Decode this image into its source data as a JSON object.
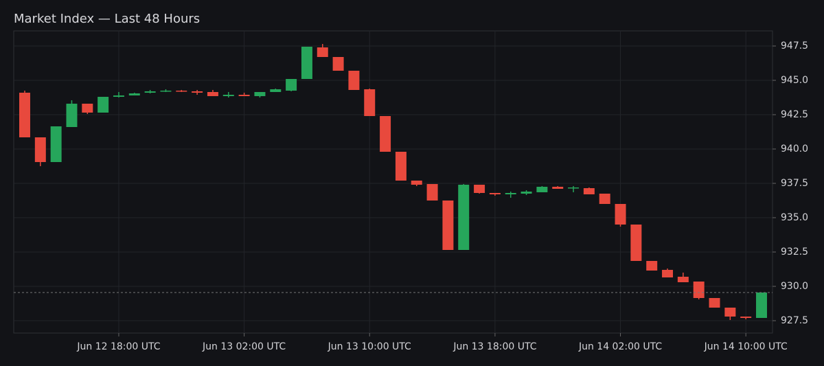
{
  "chart_data": {
    "type": "candlestick",
    "title": "Market Index — Last 48 Hours",
    "x": [
      "Jun 12 12:00",
      "Jun 12 13:00",
      "Jun 12 14:00",
      "Jun 12 15:00",
      "Jun 12 16:00",
      "Jun 12 17:00",
      "Jun 12 18:00",
      "Jun 12 19:00",
      "Jun 12 20:00",
      "Jun 12 21:00",
      "Jun 12 22:00",
      "Jun 12 23:00",
      "Jun 13 00:00",
      "Jun 13 01:00",
      "Jun 13 02:00",
      "Jun 13 03:00",
      "Jun 13 04:00",
      "Jun 13 05:00",
      "Jun 13 06:00",
      "Jun 13 07:00",
      "Jun 13 08:00",
      "Jun 13 09:00",
      "Jun 13 10:00",
      "Jun 13 11:00",
      "Jun 13 12:00",
      "Jun 13 13:00",
      "Jun 13 14:00",
      "Jun 13 15:00",
      "Jun 13 16:00",
      "Jun 13 17:00",
      "Jun 13 18:00",
      "Jun 13 19:00",
      "Jun 13 20:00",
      "Jun 13 21:00",
      "Jun 13 22:00",
      "Jun 13 23:00",
      "Jun 14 00:00",
      "Jun 14 01:00",
      "Jun 14 02:00",
      "Jun 14 03:00",
      "Jun 14 04:00",
      "Jun 14 05:00",
      "Jun 14 06:00",
      "Jun 14 07:00",
      "Jun 14 08:00",
      "Jun 14 09:00",
      "Jun 14 10:00",
      "Jun 14 11:00"
    ],
    "open": [
      944.1,
      940.85,
      939.05,
      941.6,
      943.3,
      942.65,
      943.8,
      943.9,
      944.1,
      944.2,
      944.25,
      944.2,
      944.15,
      943.85,
      943.95,
      943.85,
      944.15,
      944.25,
      945.1,
      947.4,
      946.7,
      945.7,
      944.35,
      942.4,
      939.8,
      937.7,
      937.45,
      936.25,
      932.65,
      937.4,
      936.8,
      936.7,
      936.75,
      936.85,
      937.25,
      937.15,
      937.15,
      936.75,
      936.0,
      934.5,
      931.85,
      931.2,
      930.7,
      930.35,
      929.15,
      928.45,
      927.8,
      927.7
    ],
    "high": [
      944.25,
      940.85,
      941.65,
      943.55,
      943.3,
      943.8,
      944.15,
      944.1,
      944.3,
      944.35,
      944.3,
      944.3,
      944.3,
      944.15,
      944.1,
      944.15,
      944.4,
      945.1,
      947.45,
      947.65,
      946.7,
      945.7,
      944.4,
      942.4,
      939.8,
      937.7,
      937.45,
      936.25,
      937.45,
      937.4,
      936.8,
      936.9,
      937.0,
      937.3,
      937.3,
      937.3,
      937.2,
      936.75,
      936.0,
      934.5,
      931.85,
      931.3,
      931.0,
      930.35,
      929.15,
      928.45,
      927.8,
      929.55
    ],
    "low": [
      940.85,
      938.75,
      939.05,
      941.6,
      942.55,
      942.65,
      943.75,
      943.9,
      944.05,
      944.15,
      944.15,
      943.95,
      943.85,
      943.75,
      943.85,
      943.75,
      944.15,
      944.2,
      945.1,
      946.7,
      945.7,
      944.3,
      942.4,
      939.8,
      937.7,
      937.3,
      936.25,
      932.65,
      932.65,
      936.75,
      936.6,
      936.45,
      936.65,
      936.85,
      937.1,
      936.85,
      936.7,
      936.0,
      934.35,
      931.85,
      931.15,
      930.65,
      930.3,
      929.05,
      928.45,
      927.55,
      927.6,
      927.7
    ],
    "close": [
      940.85,
      939.05,
      941.65,
      943.3,
      942.65,
      943.8,
      943.9,
      944.05,
      944.2,
      944.25,
      944.2,
      944.1,
      943.85,
      943.95,
      943.85,
      944.15,
      944.35,
      945.1,
      947.45,
      946.7,
      945.7,
      944.3,
      942.4,
      939.8,
      937.7,
      937.4,
      936.25,
      932.65,
      937.4,
      936.8,
      936.7,
      936.8,
      936.9,
      937.25,
      937.1,
      937.2,
      936.7,
      936.0,
      934.5,
      931.85,
      931.15,
      930.65,
      930.3,
      929.15,
      928.45,
      927.8,
      927.7,
      929.55
    ],
    "up_color": "#26a65b",
    "down_color": "#e8493d",
    "xlim": [
      "Jun 12 11:18",
      "Jun 14 11:42"
    ],
    "xticks": [
      {
        "value": "Jun 12 18:00",
        "label": "Jun 12 18:00 UTC"
      },
      {
        "value": "Jun 13 02:00",
        "label": "Jun 13 02:00 UTC"
      },
      {
        "value": "Jun 13 10:00",
        "label": "Jun 13 10:00 UTC"
      },
      {
        "value": "Jun 13 18:00",
        "label": "Jun 13 18:00 UTC"
      },
      {
        "value": "Jun 14 02:00",
        "label": "Jun 14 02:00 UTC"
      },
      {
        "value": "Jun 14 10:00",
        "label": "Jun 14 10:00 UTC"
      }
    ],
    "ylim": [
      926.6,
      948.6
    ],
    "yticks": [
      927.5,
      {
        "value": 930,
        "label": "930.0"
      },
      932.5,
      {
        "value": 935,
        "label": "935.0"
      },
      937.5,
      {
        "value": 940,
        "label": "940.0"
      },
      942.5,
      {
        "value": 945,
        "label": "945.0"
      },
      947.5
    ],
    "grid": true
  }
}
